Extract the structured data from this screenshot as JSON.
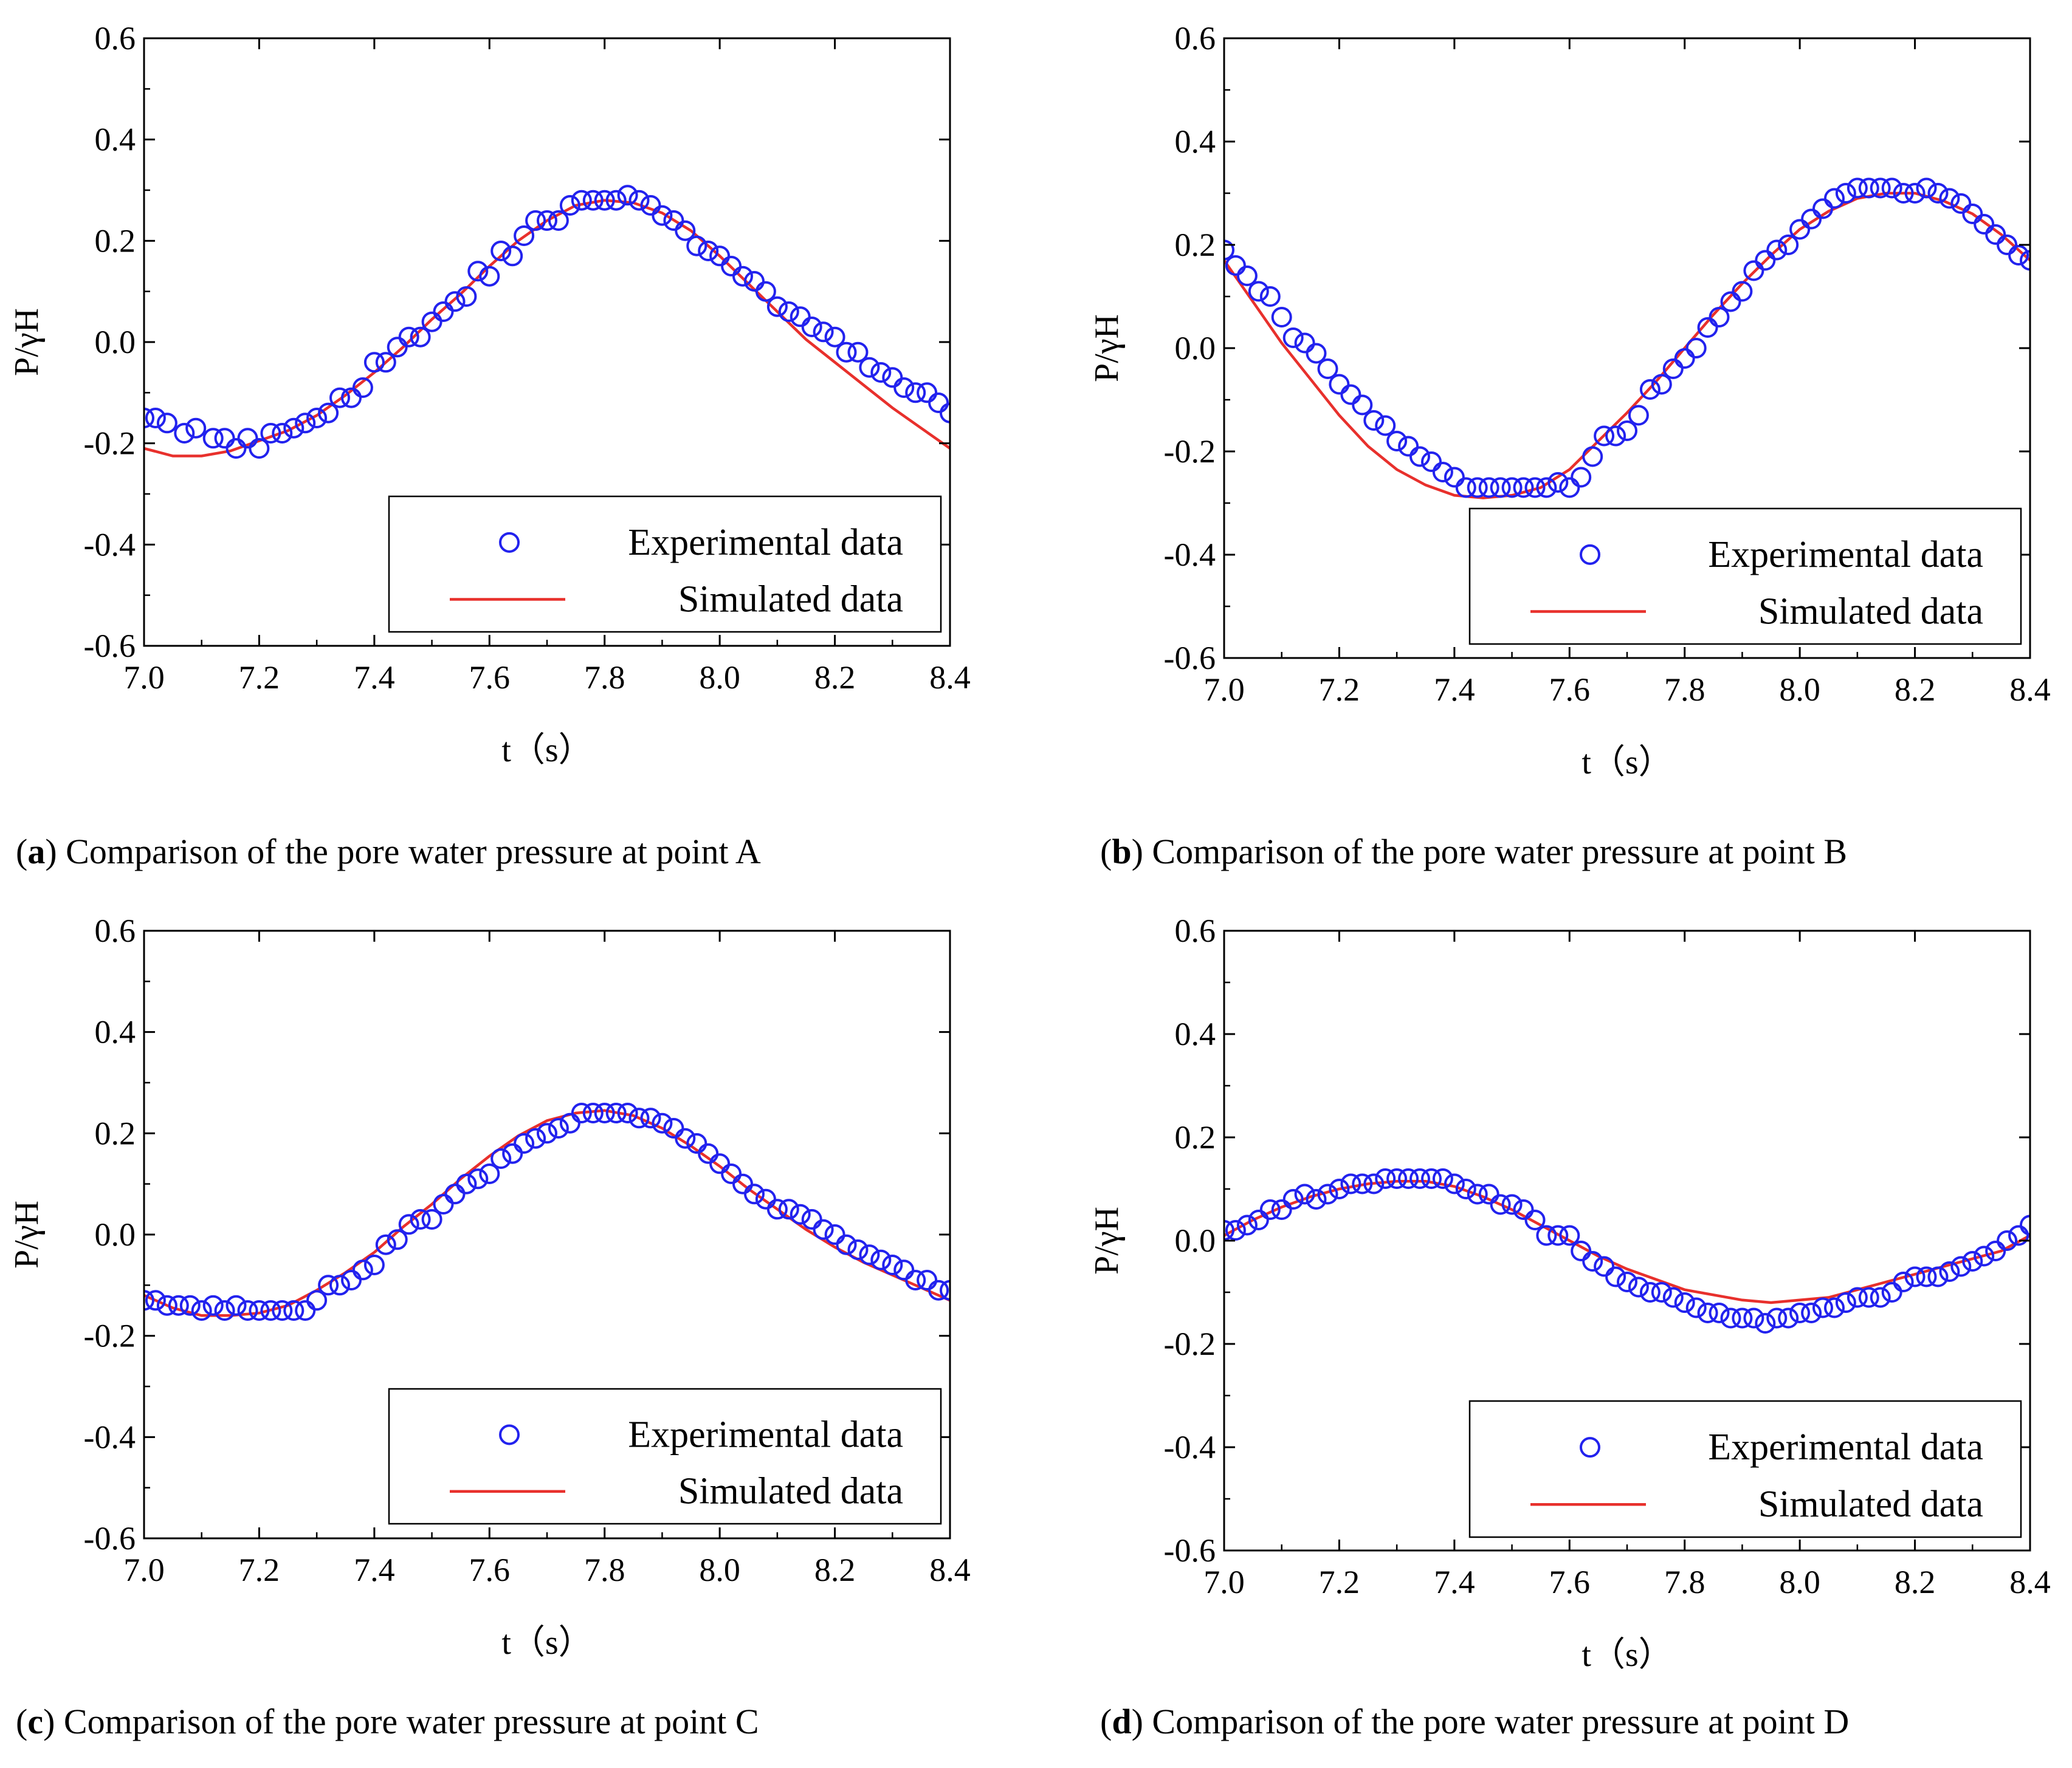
{
  "chart_data": [
    {
      "type": "scatter",
      "panel": "a",
      "caption_tag": "a",
      "caption_text": "Comparison of the pore water pressure at point A",
      "xlabel": "t（s）",
      "ylabel": "P/γH",
      "xlim": [
        7.0,
        8.4
      ],
      "ylim": [
        -0.6,
        0.6
      ],
      "xticks": [
        "7.0",
        "7.2",
        "7.4",
        "7.6",
        "7.8",
        "8.0",
        "8.2",
        "8.4"
      ],
      "yticks": [
        "-0.6",
        "-0.4",
        "-0.2",
        "0.0",
        "0.2",
        "0.4",
        "0.6"
      ],
      "legend": {
        "position": "bottom-right",
        "entries": [
          "Experimental data",
          "Simulated data"
        ]
      },
      "series": [
        {
          "name": "Experimental data",
          "kind": "markers",
          "x": [
            7.0,
            7.02,
            7.04,
            7.07,
            7.09,
            7.12,
            7.14,
            7.16,
            7.18,
            7.2,
            7.22,
            7.24,
            7.26,
            7.28,
            7.3,
            7.32,
            7.34,
            7.36,
            7.38,
            7.4,
            7.42,
            7.44,
            7.46,
            7.48,
            7.5,
            7.52,
            7.54,
            7.56,
            7.58,
            7.6,
            7.62,
            7.64,
            7.66,
            7.68,
            7.7,
            7.72,
            7.74,
            7.76,
            7.78,
            7.8,
            7.82,
            7.84,
            7.86,
            7.88,
            7.9,
            7.92,
            7.94,
            7.96,
            7.98,
            8.0,
            8.02,
            8.04,
            8.06,
            8.08,
            8.1,
            8.12,
            8.14,
            8.16,
            8.18,
            8.2,
            8.22,
            8.24,
            8.26,
            8.28,
            8.3,
            8.32,
            8.34,
            8.36,
            8.38,
            8.4
          ],
          "y": [
            -0.15,
            -0.15,
            -0.16,
            -0.18,
            -0.17,
            -0.19,
            -0.19,
            -0.21,
            -0.19,
            -0.21,
            -0.18,
            -0.18,
            -0.17,
            -0.16,
            -0.15,
            -0.14,
            -0.11,
            -0.11,
            -0.09,
            -0.04,
            -0.04,
            -0.01,
            0.01,
            0.01,
            0.04,
            0.06,
            0.08,
            0.09,
            0.14,
            0.13,
            0.18,
            0.17,
            0.21,
            0.24,
            0.24,
            0.24,
            0.27,
            0.28,
            0.28,
            0.28,
            0.28,
            0.29,
            0.28,
            0.27,
            0.25,
            0.24,
            0.22,
            0.19,
            0.18,
            0.17,
            0.15,
            0.13,
            0.12,
            0.1,
            0.07,
            0.06,
            0.05,
            0.03,
            0.02,
            0.01,
            -0.02,
            -0.02,
            -0.05,
            -0.06,
            -0.07,
            -0.09,
            -0.1,
            -0.1,
            -0.12,
            -0.14
          ]
        },
        {
          "name": "Simulated data",
          "kind": "line",
          "x": [
            7.0,
            7.05,
            7.1,
            7.15,
            7.2,
            7.25,
            7.3,
            7.35,
            7.4,
            7.45,
            7.5,
            7.55,
            7.6,
            7.65,
            7.7,
            7.75,
            7.8,
            7.85,
            7.9,
            7.95,
            8.0,
            8.05,
            8.1,
            8.15,
            8.2,
            8.25,
            8.3,
            8.35,
            8.4
          ],
          "y": [
            -0.21,
            -0.225,
            -0.225,
            -0.215,
            -0.195,
            -0.175,
            -0.145,
            -0.105,
            -0.06,
            -0.01,
            0.045,
            0.095,
            0.15,
            0.2,
            0.24,
            0.27,
            0.28,
            0.275,
            0.255,
            0.22,
            0.17,
            0.115,
            0.06,
            0.005,
            -0.04,
            -0.085,
            -0.13,
            -0.17,
            -0.21
          ]
        }
      ]
    },
    {
      "type": "scatter",
      "panel": "b",
      "caption_tag": "b",
      "caption_text": "Comparison of the pore water pressure at point B",
      "xlabel": "t（s）",
      "ylabel": "P/γH",
      "xlim": [
        7.0,
        8.4
      ],
      "ylim": [
        -0.6,
        0.6
      ],
      "xticks": [
        "7.0",
        "7.2",
        "7.4",
        "7.6",
        "7.8",
        "8.0",
        "8.2",
        "8.4"
      ],
      "yticks": [
        "-0.6",
        "-0.4",
        "-0.2",
        "0.0",
        "0.2",
        "0.4",
        "0.6"
      ],
      "legend": {
        "position": "bottom-right",
        "entries": [
          "Experimental data",
          "Simulated data"
        ]
      },
      "series": [
        {
          "name": "Experimental data",
          "kind": "markers",
          "x": [
            7.0,
            7.02,
            7.04,
            7.06,
            7.08,
            7.1,
            7.12,
            7.14,
            7.16,
            7.18,
            7.2,
            7.22,
            7.24,
            7.26,
            7.28,
            7.3,
            7.32,
            7.34,
            7.36,
            7.38,
            7.4,
            7.42,
            7.44,
            7.46,
            7.48,
            7.5,
            7.52,
            7.54,
            7.56,
            7.58,
            7.6,
            7.62,
            7.64,
            7.66,
            7.68,
            7.7,
            7.72,
            7.74,
            7.76,
            7.78,
            7.8,
            7.82,
            7.84,
            7.86,
            7.88,
            7.9,
            7.92,
            7.94,
            7.96,
            7.98,
            8.0,
            8.02,
            8.04,
            8.06,
            8.08,
            8.1,
            8.12,
            8.14,
            8.16,
            8.18,
            8.2,
            8.22,
            8.24,
            8.26,
            8.28,
            8.3,
            8.32,
            8.34,
            8.36,
            8.38,
            8.4
          ],
          "y": [
            0.19,
            0.16,
            0.14,
            0.11,
            0.1,
            0.06,
            0.02,
            0.01,
            -0.01,
            -0.04,
            -0.07,
            -0.09,
            -0.11,
            -0.14,
            -0.15,
            -0.18,
            -0.19,
            -0.21,
            -0.22,
            -0.24,
            -0.25,
            -0.27,
            -0.27,
            -0.27,
            -0.27,
            -0.27,
            -0.27,
            -0.27,
            -0.27,
            -0.26,
            -0.27,
            -0.25,
            -0.21,
            -0.17,
            -0.17,
            -0.16,
            -0.13,
            -0.08,
            -0.07,
            -0.04,
            -0.02,
            0.0,
            0.04,
            0.06,
            0.09,
            0.11,
            0.15,
            0.17,
            0.19,
            0.2,
            0.23,
            0.25,
            0.27,
            0.29,
            0.3,
            0.31,
            0.31,
            0.31,
            0.31,
            0.3,
            0.3,
            0.31,
            0.3,
            0.29,
            0.28,
            0.26,
            0.24,
            0.22,
            0.2,
            0.18,
            0.17
          ]
        },
        {
          "name": "Simulated data",
          "kind": "line",
          "x": [
            7.0,
            7.05,
            7.1,
            7.15,
            7.2,
            7.25,
            7.3,
            7.35,
            7.4,
            7.45,
            7.5,
            7.55,
            7.6,
            7.65,
            7.7,
            7.75,
            7.8,
            7.85,
            7.9,
            7.95,
            8.0,
            8.05,
            8.1,
            8.15,
            8.2,
            8.25,
            8.3,
            8.35,
            8.4
          ],
          "y": [
            0.17,
            0.09,
            0.01,
            -0.06,
            -0.13,
            -0.19,
            -0.235,
            -0.265,
            -0.285,
            -0.29,
            -0.285,
            -0.27,
            -0.235,
            -0.18,
            -0.125,
            -0.065,
            0.0,
            0.065,
            0.125,
            0.18,
            0.23,
            0.265,
            0.29,
            0.3,
            0.3,
            0.285,
            0.26,
            0.22,
            0.17
          ]
        }
      ]
    },
    {
      "type": "scatter",
      "panel": "c",
      "caption_tag": "c",
      "caption_text": "Comparison of the pore water pressure at point C",
      "xlabel": "t（s）",
      "ylabel": "P/γH",
      "xlim": [
        7.0,
        8.4
      ],
      "ylim": [
        -0.6,
        0.6
      ],
      "xticks": [
        "7.0",
        "7.2",
        "7.4",
        "7.6",
        "7.8",
        "8.0",
        "8.2",
        "8.4"
      ],
      "yticks": [
        "-0.6",
        "-0.4",
        "-0.2",
        "0.0",
        "0.2",
        "0.4",
        "0.6"
      ],
      "legend": {
        "position": "bottom-right",
        "entries": [
          "Experimental data",
          "Simulated data"
        ]
      },
      "series": [
        {
          "name": "Experimental data",
          "kind": "markers",
          "x": [
            7.0,
            7.02,
            7.04,
            7.06,
            7.08,
            7.1,
            7.12,
            7.14,
            7.16,
            7.18,
            7.2,
            7.22,
            7.24,
            7.26,
            7.28,
            7.3,
            7.32,
            7.34,
            7.36,
            7.38,
            7.4,
            7.42,
            7.44,
            7.46,
            7.48,
            7.5,
            7.52,
            7.54,
            7.56,
            7.58,
            7.6,
            7.62,
            7.64,
            7.66,
            7.68,
            7.7,
            7.72,
            7.74,
            7.76,
            7.78,
            7.8,
            7.82,
            7.84,
            7.86,
            7.88,
            7.9,
            7.92,
            7.94,
            7.96,
            7.98,
            8.0,
            8.02,
            8.04,
            8.06,
            8.08,
            8.1,
            8.12,
            8.14,
            8.16,
            8.18,
            8.2,
            8.22,
            8.24,
            8.26,
            8.28,
            8.3,
            8.32,
            8.34,
            8.36,
            8.38,
            8.4
          ],
          "y": [
            -0.13,
            -0.13,
            -0.14,
            -0.14,
            -0.14,
            -0.15,
            -0.14,
            -0.15,
            -0.14,
            -0.15,
            -0.15,
            -0.15,
            -0.15,
            -0.15,
            -0.15,
            -0.13,
            -0.1,
            -0.1,
            -0.09,
            -0.07,
            -0.06,
            -0.02,
            -0.01,
            0.02,
            0.03,
            0.03,
            0.06,
            0.08,
            0.1,
            0.11,
            0.12,
            0.15,
            0.16,
            0.18,
            0.19,
            0.2,
            0.21,
            0.22,
            0.24,
            0.24,
            0.24,
            0.24,
            0.24,
            0.23,
            0.23,
            0.22,
            0.21,
            0.19,
            0.18,
            0.16,
            0.14,
            0.12,
            0.1,
            0.08,
            0.07,
            0.05,
            0.05,
            0.04,
            0.03,
            0.01,
            0.0,
            -0.02,
            -0.03,
            -0.04,
            -0.05,
            -0.06,
            -0.07,
            -0.09,
            -0.09,
            -0.11,
            -0.11
          ]
        },
        {
          "name": "Simulated data",
          "kind": "line",
          "x": [
            7.0,
            7.05,
            7.1,
            7.15,
            7.2,
            7.25,
            7.3,
            7.35,
            7.4,
            7.45,
            7.5,
            7.55,
            7.6,
            7.65,
            7.7,
            7.75,
            7.8,
            7.85,
            7.9,
            7.95,
            8.0,
            8.05,
            8.1,
            8.15,
            8.2,
            8.25,
            8.3,
            8.35,
            8.4
          ],
          "y": [
            -0.12,
            -0.145,
            -0.16,
            -0.16,
            -0.155,
            -0.14,
            -0.11,
            -0.075,
            -0.035,
            0.015,
            0.06,
            0.11,
            0.155,
            0.195,
            0.225,
            0.24,
            0.245,
            0.235,
            0.21,
            0.175,
            0.135,
            0.09,
            0.05,
            0.01,
            -0.025,
            -0.055,
            -0.08,
            -0.105,
            -0.13
          ]
        }
      ]
    },
    {
      "type": "scatter",
      "panel": "d",
      "caption_tag": "d",
      "caption_text": "Comparison of the pore water pressure at point D",
      "xlabel": "t（s）",
      "ylabel": "P/γH",
      "xlim": [
        7.0,
        8.4
      ],
      "ylim": [
        -0.6,
        0.6
      ],
      "xticks": [
        "7.0",
        "7.2",
        "7.4",
        "7.6",
        "7.8",
        "8.0",
        "8.2",
        "8.4"
      ],
      "yticks": [
        "-0.6",
        "-0.4",
        "-0.2",
        "0.0",
        "0.2",
        "0.4",
        "0.6"
      ],
      "legend": {
        "position": "bottom-right",
        "entries": [
          "Experimental data",
          "Simulated data"
        ]
      },
      "series": [
        {
          "name": "Experimental data",
          "kind": "markers",
          "x": [
            7.0,
            7.02,
            7.04,
            7.06,
            7.08,
            7.1,
            7.12,
            7.14,
            7.16,
            7.18,
            7.2,
            7.22,
            7.24,
            7.26,
            7.28,
            7.3,
            7.32,
            7.34,
            7.36,
            7.38,
            7.4,
            7.42,
            7.44,
            7.46,
            7.48,
            7.5,
            7.52,
            7.54,
            7.56,
            7.58,
            7.6,
            7.62,
            7.64,
            7.66,
            7.68,
            7.7,
            7.72,
            7.74,
            7.76,
            7.78,
            7.8,
            7.82,
            7.84,
            7.86,
            7.88,
            7.9,
            7.92,
            7.94,
            7.96,
            7.98,
            8.0,
            8.02,
            8.04,
            8.06,
            8.08,
            8.1,
            8.12,
            8.14,
            8.16,
            8.18,
            8.2,
            8.22,
            8.24,
            8.26,
            8.28,
            8.3,
            8.32,
            8.34,
            8.36,
            8.38,
            8.4
          ],
          "y": [
            0.02,
            0.02,
            0.03,
            0.04,
            0.06,
            0.06,
            0.08,
            0.09,
            0.08,
            0.09,
            0.1,
            0.11,
            0.11,
            0.11,
            0.12,
            0.12,
            0.12,
            0.12,
            0.12,
            0.12,
            0.11,
            0.1,
            0.09,
            0.09,
            0.07,
            0.07,
            0.06,
            0.04,
            0.01,
            0.01,
            0.01,
            -0.02,
            -0.04,
            -0.05,
            -0.07,
            -0.08,
            -0.09,
            -0.1,
            -0.1,
            -0.11,
            -0.12,
            -0.13,
            -0.14,
            -0.14,
            -0.15,
            -0.15,
            -0.15,
            -0.16,
            -0.15,
            -0.15,
            -0.14,
            -0.14,
            -0.13,
            -0.13,
            -0.12,
            -0.11,
            -0.11,
            -0.11,
            -0.1,
            -0.08,
            -0.07,
            -0.07,
            -0.07,
            -0.06,
            -0.05,
            -0.04,
            -0.03,
            -0.02,
            0.0,
            0.01,
            0.03
          ]
        },
        {
          "name": "Simulated data",
          "kind": "line",
          "x": [
            7.0,
            7.05,
            7.1,
            7.15,
            7.2,
            7.25,
            7.3,
            7.35,
            7.4,
            7.45,
            7.5,
            7.55,
            7.6,
            7.65,
            7.7,
            7.75,
            7.8,
            7.85,
            7.9,
            7.95,
            8.0,
            8.05,
            8.1,
            8.15,
            8.2,
            8.25,
            8.3,
            8.35,
            8.4
          ],
          "y": [
            0.01,
            0.04,
            0.065,
            0.085,
            0.1,
            0.11,
            0.115,
            0.115,
            0.105,
            0.085,
            0.06,
            0.03,
            0.0,
            -0.03,
            -0.055,
            -0.075,
            -0.095,
            -0.105,
            -0.115,
            -0.12,
            -0.115,
            -0.11,
            -0.095,
            -0.08,
            -0.065,
            -0.05,
            -0.035,
            -0.02,
            0.01
          ]
        }
      ]
    }
  ],
  "colors": {
    "experimental": "#2222ee",
    "simulated": "#e8302c",
    "axes": "#000000"
  }
}
